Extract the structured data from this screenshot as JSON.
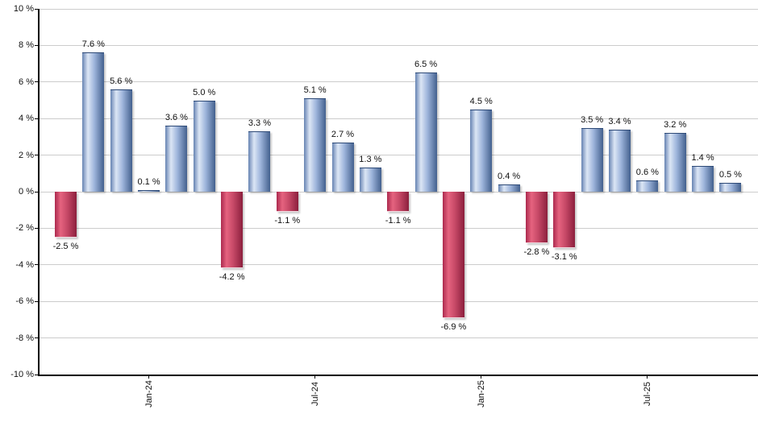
{
  "chart_data": {
    "type": "bar",
    "values": [
      -2.5,
      7.6,
      5.6,
      0.1,
      3.6,
      5.0,
      -4.2,
      3.3,
      -1.1,
      5.1,
      2.7,
      1.3,
      -1.1,
      6.5,
      -6.9,
      4.5,
      0.4,
      -2.8,
      -3.1,
      3.5,
      3.4,
      0.6,
      3.2,
      1.4,
      0.5
    ],
    "labels": [
      "-2.5 %",
      "7.6 %",
      "5.6 %",
      "0.1 %",
      "3.6 %",
      "5.0 %",
      "-4.2 %",
      "3.3 %",
      "-1.1 %",
      "5.1 %",
      "2.7 %",
      "1.3 %",
      "-1.1 %",
      "6.5 %",
      "-6.9 %",
      "4.5 %",
      "0.4 %",
      "-2.8 %",
      "-3.1 %",
      "3.5 %",
      "3.4 %",
      "0.6 %",
      "3.2 %",
      "1.4 %",
      "0.5 %"
    ],
    "x_ticks": [
      {
        "bar_index": 3,
        "label": "Jan-24"
      },
      {
        "bar_index": 9,
        "label": "Jul-24"
      },
      {
        "bar_index": 15,
        "label": "Jan-25"
      },
      {
        "bar_index": 21,
        "label": "Jul-25"
      }
    ],
    "y_ticks": [
      {
        "value": 10,
        "label": "10 %"
      },
      {
        "value": 8,
        "label": "8 %"
      },
      {
        "value": 6,
        "label": "6 %"
      },
      {
        "value": 4,
        "label": "4 %"
      },
      {
        "value": 2,
        "label": "2 %"
      },
      {
        "value": 0,
        "label": "0 %"
      },
      {
        "value": -2,
        "label": "-2 %"
      },
      {
        "value": -4,
        "label": "-4 %"
      },
      {
        "value": -6,
        "label": "-6 %"
      },
      {
        "value": -8,
        "label": "-8 %"
      },
      {
        "value": -10,
        "label": "-10 %"
      }
    ],
    "ylim": [
      -10,
      10
    ],
    "grid": true,
    "legend_position": "none",
    "colors": {
      "positive": {
        "edge_left": "#6683b2",
        "highlight": "#dce6f5",
        "mid": "#9fb6dc",
        "edge_right": "#43608e"
      },
      "negative": {
        "edge_left": "#ac2a4e",
        "highlight": "#e5637f",
        "mid": "#c84a68",
        "edge_right": "#8c1f3d"
      },
      "gridline": "#cccccc",
      "axis": "#000000",
      "text": "#111111",
      "background": "#ffffff"
    }
  }
}
